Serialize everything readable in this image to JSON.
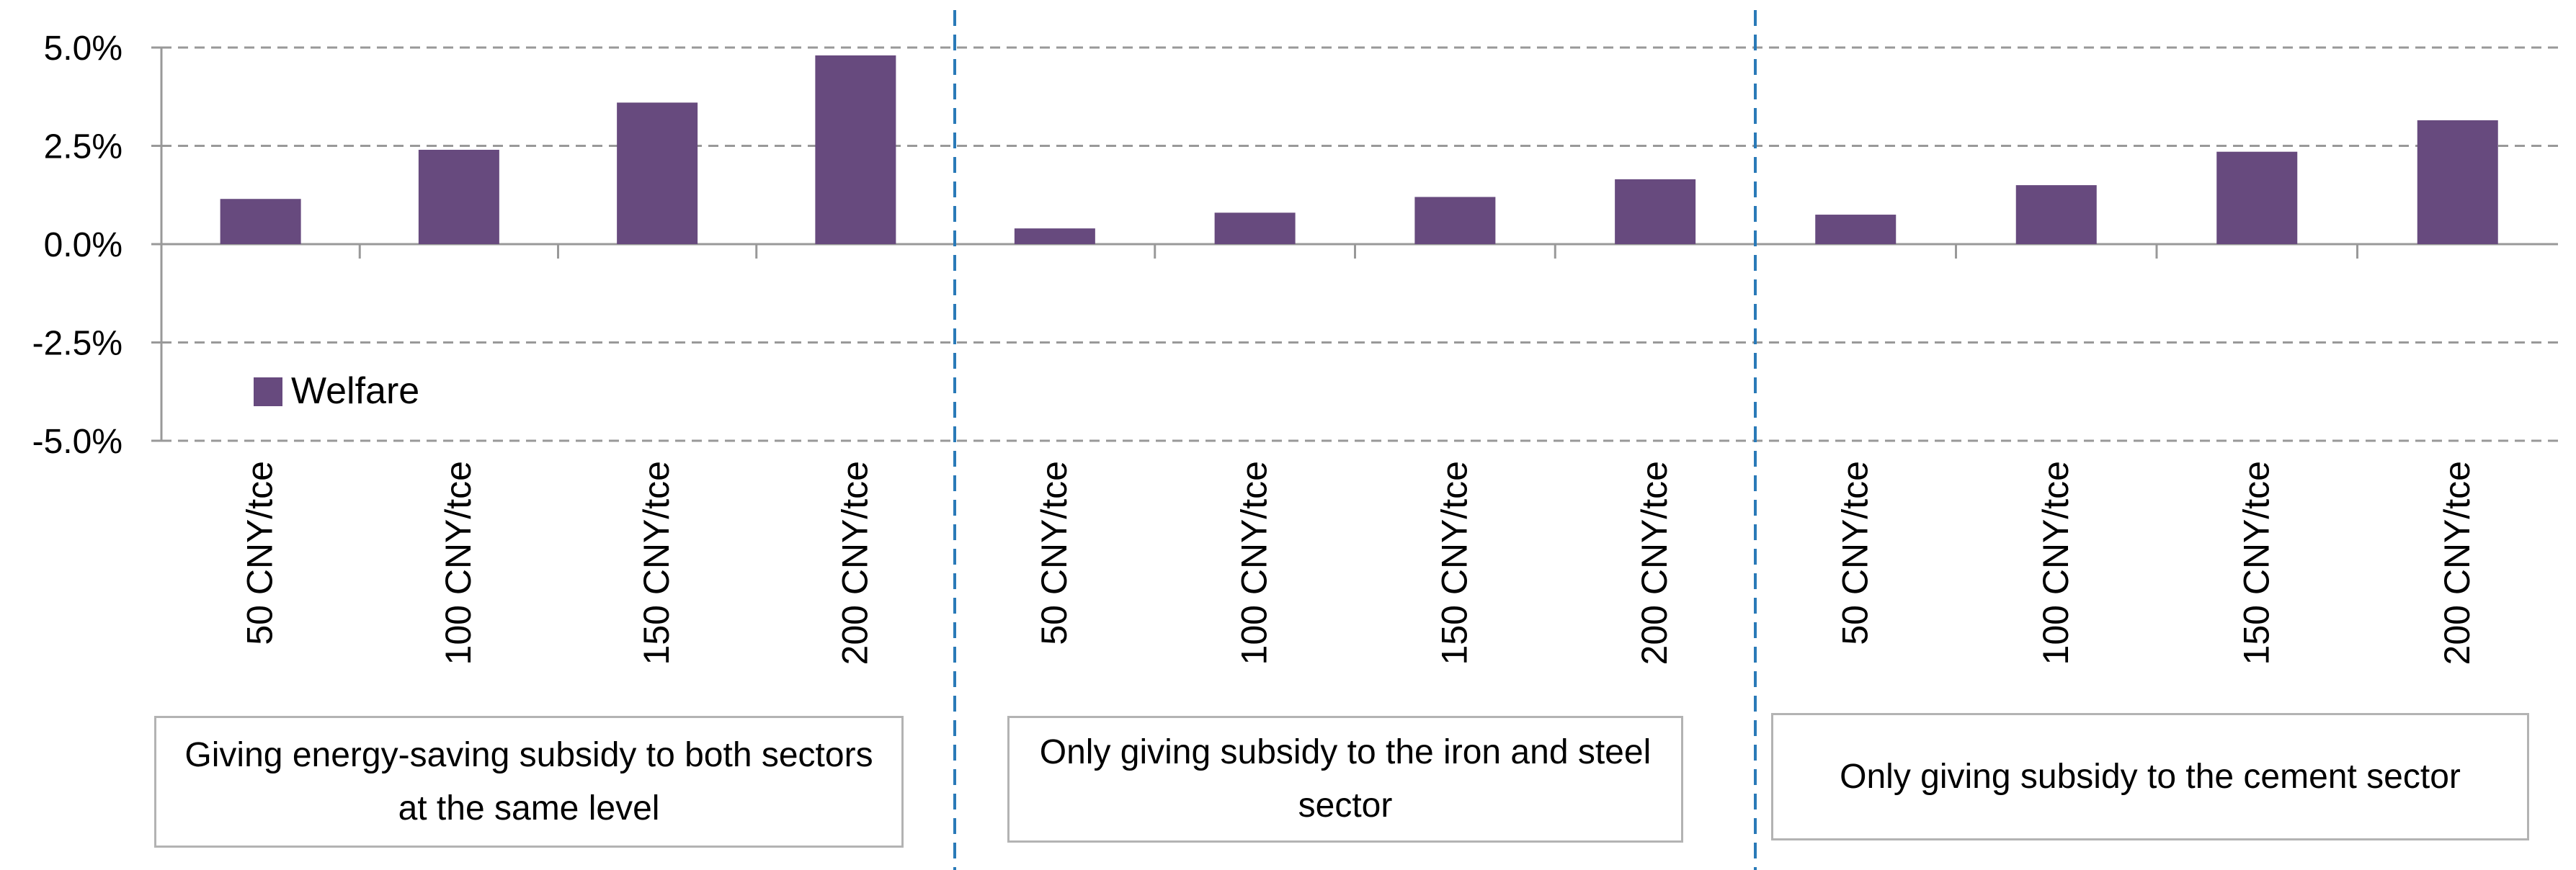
{
  "chart_data": {
    "type": "bar",
    "title": "",
    "xlabel": "",
    "ylabel": "",
    "ylim": [
      -5.0,
      5.0
    ],
    "y_ticks": [
      5.0,
      2.5,
      0.0,
      -2.5,
      -5.0
    ],
    "y_tick_labels": [
      "5.0%",
      "2.5%",
      "0.0%",
      "-2.5%",
      "-5.0%"
    ],
    "grid": true,
    "legend": {
      "entries": [
        "Welfare"
      ],
      "placement": "lower-left"
    },
    "groups": [
      {
        "label": "Giving energy-saving subsidy to both sectors at the same level",
        "categories": [
          "50 CNY/tce",
          "100 CNY/tce",
          "150 CNY/tce",
          "200 CNY/tce"
        ],
        "values": [
          1.15,
          2.4,
          3.6,
          4.8
        ]
      },
      {
        "label": "Only giving subsidy to the iron and steel sector",
        "categories": [
          "50 CNY/tce",
          "100 CNY/tce",
          "150 CNY/tce",
          "200 CNY/tce"
        ],
        "values": [
          0.4,
          0.8,
          1.2,
          1.65
        ]
      },
      {
        "label": "Only giving subsidy to the cement sector",
        "categories": [
          "50 CNY/tce",
          "100 CNY/tce",
          "150 CNY/tce",
          "200 CNY/tce"
        ],
        "values": [
          0.75,
          1.5,
          2.35,
          3.15
        ]
      }
    ],
    "series": [
      {
        "name": "Welfare",
        "color": "#674a7e",
        "values": [
          1.15,
          2.4,
          3.6,
          4.8,
          0.4,
          0.8,
          1.2,
          1.65,
          0.75,
          1.5,
          2.35,
          3.15
        ]
      }
    ],
    "colors": {
      "bar": "#674a7e",
      "grid": "#999999",
      "axis": "#999999",
      "separator": "#2a7ab8",
      "box_border": "#b3b3b3"
    }
  }
}
